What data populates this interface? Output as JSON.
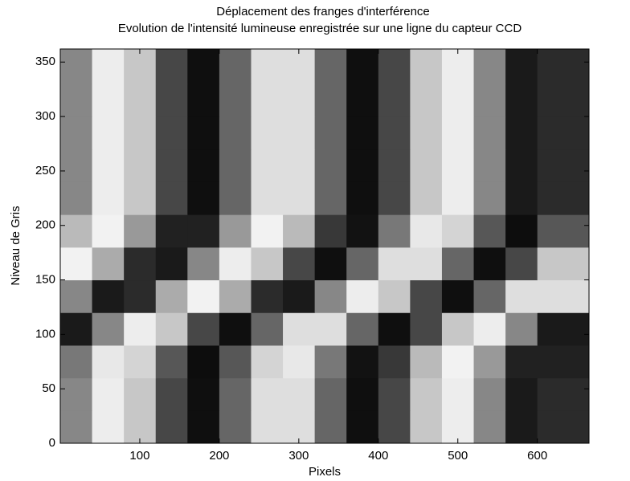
{
  "chart_data": {
    "type": "heatmap",
    "title": "Déplacement des franges d'interférence",
    "subtitle": "Evolution de l'intensité lumineuse enregistrée sur une ligne du capteur CCD",
    "x_label": "Pixels",
    "y_label": "Niveau de Gris",
    "colormap": "gray",
    "clim": [
      0,
      1
    ],
    "x": [
      20,
      60,
      100,
      140,
      180,
      220,
      260,
      300,
      340,
      380,
      420,
      460,
      500,
      540,
      580,
      620
    ],
    "y": [
      15,
      45,
      75,
      105,
      135,
      165,
      195,
      225,
      255,
      285,
      315,
      345
    ],
    "z": [
      [
        0.53,
        0.93,
        0.78,
        0.28,
        0.06,
        0.4,
        0.87,
        0.87,
        0.4,
        0.06,
        0.28,
        0.78,
        0.93,
        0.53,
        0.1,
        0.17
      ],
      [
        0.53,
        0.93,
        0.78,
        0.28,
        0.06,
        0.4,
        0.87,
        0.87,
        0.4,
        0.06,
        0.28,
        0.78,
        0.93,
        0.53,
        0.1,
        0.17
      ],
      [
        0.47,
        0.91,
        0.83,
        0.34,
        0.05,
        0.34,
        0.83,
        0.91,
        0.47,
        0.07,
        0.22,
        0.73,
        0.95,
        0.6,
        0.13,
        0.13
      ],
      [
        0.1,
        0.53,
        0.93,
        0.78,
        0.28,
        0.06,
        0.4,
        0.87,
        0.87,
        0.4,
        0.06,
        0.28,
        0.78,
        0.93,
        0.53,
        0.1
      ],
      [
        0.53,
        0.1,
        0.17,
        0.67,
        0.95,
        0.67,
        0.17,
        0.1,
        0.53,
        0.93,
        0.78,
        0.28,
        0.06,
        0.4,
        0.87,
        0.87
      ],
      [
        0.95,
        0.67,
        0.17,
        0.1,
        0.53,
        0.93,
        0.78,
        0.28,
        0.06,
        0.4,
        0.87,
        0.87,
        0.4,
        0.06,
        0.28,
        0.78
      ],
      [
        0.73,
        0.95,
        0.6,
        0.13,
        0.13,
        0.6,
        0.95,
        0.73,
        0.22,
        0.07,
        0.47,
        0.91,
        0.83,
        0.34,
        0.05,
        0.34
      ],
      [
        0.53,
        0.93,
        0.78,
        0.28,
        0.06,
        0.4,
        0.87,
        0.87,
        0.4,
        0.06,
        0.28,
        0.78,
        0.93,
        0.53,
        0.1,
        0.17
      ],
      [
        0.53,
        0.93,
        0.78,
        0.28,
        0.06,
        0.4,
        0.87,
        0.87,
        0.4,
        0.06,
        0.28,
        0.78,
        0.93,
        0.53,
        0.1,
        0.17
      ],
      [
        0.53,
        0.93,
        0.78,
        0.28,
        0.06,
        0.4,
        0.87,
        0.87,
        0.4,
        0.06,
        0.28,
        0.78,
        0.93,
        0.53,
        0.1,
        0.17
      ],
      [
        0.53,
        0.93,
        0.78,
        0.28,
        0.06,
        0.4,
        0.87,
        0.87,
        0.4,
        0.06,
        0.28,
        0.78,
        0.93,
        0.53,
        0.1,
        0.17
      ],
      [
        0.53,
        0.93,
        0.78,
        0.28,
        0.06,
        0.4,
        0.87,
        0.87,
        0.4,
        0.06,
        0.28,
        0.78,
        0.93,
        0.53,
        0.1,
        0.17
      ]
    ],
    "xlim": [
      0,
      665
    ],
    "xticks": [
      100,
      200,
      300,
      400,
      500,
      600
    ],
    "ylim": [
      0,
      362
    ],
    "yticks": [
      0,
      50,
      100,
      150,
      200,
      250,
      300,
      350
    ]
  }
}
